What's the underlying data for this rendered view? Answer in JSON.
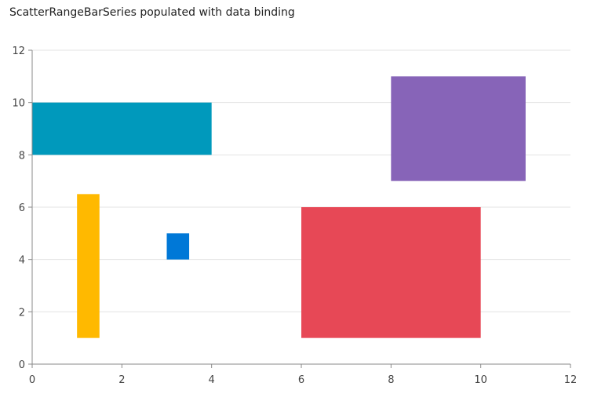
{
  "chart_data": {
    "type": "bar",
    "title": "ScatterRangeBarSeries populated with data binding",
    "xlim": [
      0,
      12
    ],
    "ylim": [
      0,
      12
    ],
    "xticks": [
      0,
      2,
      4,
      6,
      8,
      10,
      12
    ],
    "yticks": [
      0,
      2,
      4,
      6,
      8,
      10,
      12
    ],
    "grid": true,
    "series": [
      {
        "x_from": 0,
        "x_to": 4,
        "y_from": 8,
        "y_to": 10,
        "color": "#0099BC"
      },
      {
        "x_from": 8,
        "x_to": 11,
        "y_from": 7,
        "y_to": 11,
        "color": "#8764B8"
      },
      {
        "x_from": 1,
        "x_to": 1.5,
        "y_from": 1,
        "y_to": 6.5,
        "color": "#FFB900"
      },
      {
        "x_from": 3,
        "x_to": 3.5,
        "y_from": 4,
        "y_to": 5,
        "color": "#0078D7"
      },
      {
        "x_from": 6,
        "x_to": 10,
        "y_from": 1,
        "y_to": 6,
        "color": "#E74856"
      }
    ]
  }
}
